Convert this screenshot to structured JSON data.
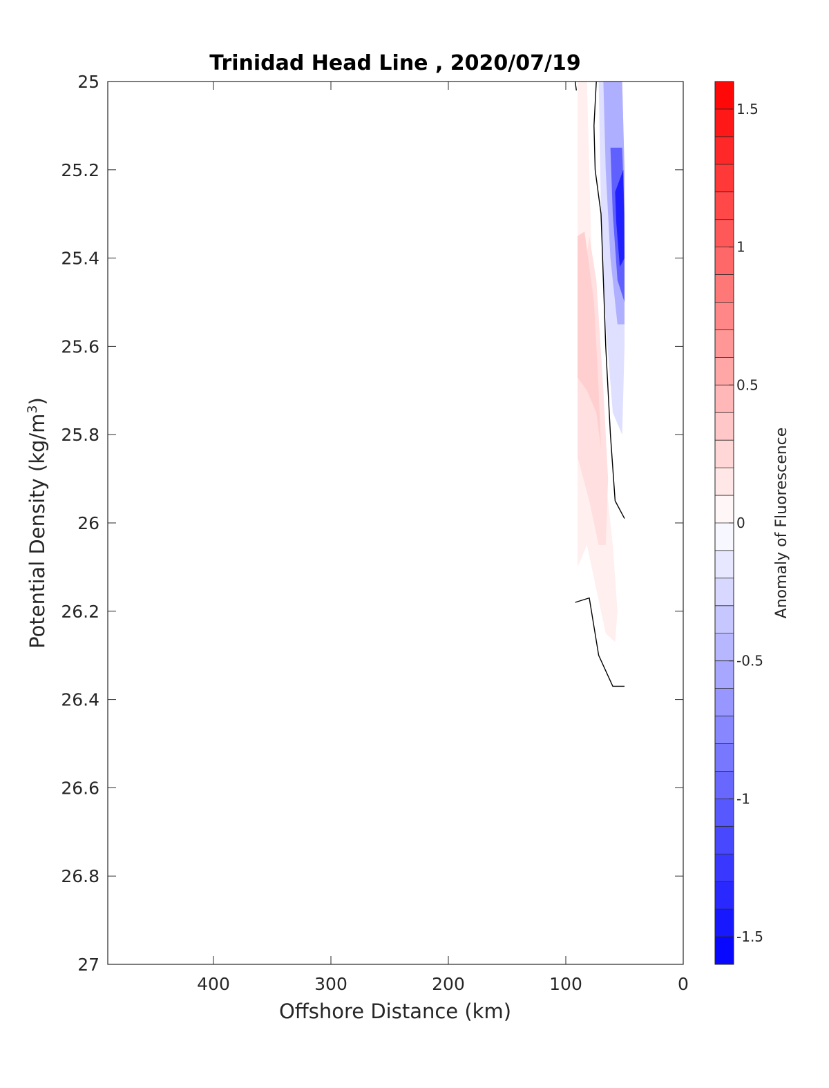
{
  "chart_data": {
    "type": "heatmap",
    "title": "Trinidad Head Line , 2020/07/19",
    "xlabel": "Offshore Distance (km)",
    "ylabel": "Potential Density (kg/m",
    "ylabel_superscript": "3",
    "ylabel_suffix": ")",
    "xlim": [
      490,
      0
    ],
    "x_reversed": true,
    "ylim": [
      25,
      27
    ],
    "y_reversed": true,
    "x_ticks": [
      400,
      300,
      200,
      100,
      0
    ],
    "y_ticks": [
      25,
      25.2,
      25.4,
      25.6,
      25.8,
      26,
      26.2,
      26.4,
      26.6,
      26.8,
      27
    ],
    "y_tick_labels": [
      "25",
      "25.2",
      "25.4",
      "25.6",
      "25.8",
      "26",
      "26.2",
      "26.4",
      "26.6",
      "26.8",
      "27"
    ],
    "grid": false,
    "colorbar": {
      "label": "Anomaly of Fluorescence",
      "range": [
        -1.6,
        1.6
      ],
      "step": 0.1,
      "ticks": [
        1.5,
        1,
        0.5,
        0,
        -0.5,
        -1,
        -1.5
      ],
      "tick_labels": [
        "1.5",
        "1",
        "0.5",
        "0",
        "-0.5",
        "-1",
        "-1.5"
      ],
      "low_color": "#0000ff",
      "high_color": "#ff0000",
      "mid_color": "#ffffff"
    },
    "contour_regions": [
      {
        "level": 0.1,
        "points": [
          [
            90,
            25
          ],
          [
            82,
            25
          ],
          [
            80,
            25.2
          ],
          [
            78,
            25.4
          ],
          [
            72,
            25.7
          ],
          [
            66,
            25.9
          ],
          [
            60,
            26.05
          ],
          [
            56,
            26.2
          ],
          [
            58,
            26.27
          ],
          [
            66,
            26.25
          ],
          [
            74,
            26.15
          ],
          [
            82,
            26.05
          ],
          [
            90,
            26.1
          ],
          [
            90,
            25
          ]
        ]
      },
      {
        "level": 0.2,
        "points": [
          [
            90,
            25.55
          ],
          [
            80,
            25.35
          ],
          [
            74,
            25.45
          ],
          [
            68,
            25.7
          ],
          [
            64,
            25.9
          ],
          [
            66,
            26.05
          ],
          [
            72,
            26.05
          ],
          [
            80,
            25.95
          ],
          [
            90,
            25.85
          ],
          [
            90,
            25.55
          ]
        ]
      },
      {
        "level": 0.3,
        "points": [
          [
            90,
            25.35
          ],
          [
            84,
            25.34
          ],
          [
            76,
            25.5
          ],
          [
            72,
            25.7
          ],
          [
            70,
            25.83
          ],
          [
            74,
            25.75
          ],
          [
            82,
            25.7
          ],
          [
            90,
            25.67
          ],
          [
            90,
            25.35
          ]
        ]
      },
      {
        "level": -0.2,
        "points": [
          [
            72,
            25
          ],
          [
            52,
            25
          ],
          [
            50,
            25.2
          ],
          [
            50,
            25.6
          ],
          [
            52,
            25.8
          ],
          [
            60,
            25.75
          ],
          [
            66,
            25.55
          ],
          [
            70,
            25.3
          ],
          [
            72,
            25
          ]
        ]
      },
      {
        "level": -0.5,
        "points": [
          [
            68,
            25
          ],
          [
            52,
            25
          ],
          [
            50,
            25.2
          ],
          [
            50,
            25.55
          ],
          [
            56,
            25.55
          ],
          [
            62,
            25.4
          ],
          [
            66,
            25.2
          ],
          [
            68,
            25
          ]
        ]
      },
      {
        "level": -1.0,
        "points": [
          [
            62,
            25.15
          ],
          [
            52,
            25.15
          ],
          [
            50,
            25.3
          ],
          [
            50,
            25.5
          ],
          [
            56,
            25.45
          ],
          [
            60,
            25.3
          ],
          [
            62,
            25.15
          ]
        ]
      },
      {
        "level": -1.4,
        "points": [
          [
            58,
            25.25
          ],
          [
            51,
            25.2
          ],
          [
            50,
            25.4
          ],
          [
            54,
            25.42
          ],
          [
            57,
            25.32
          ],
          [
            58,
            25.25
          ]
        ]
      }
    ],
    "contour_lines": [
      {
        "points": [
          [
            92,
            25
          ],
          [
            91,
            25.02
          ]
        ]
      },
      {
        "points": [
          [
            74,
            25
          ],
          [
            76,
            25.1
          ],
          [
            75,
            25.2
          ],
          [
            70,
            25.3
          ],
          [
            66,
            25.6
          ],
          [
            62,
            25.8
          ],
          [
            58,
            25.95
          ],
          [
            50,
            25.99
          ]
        ]
      },
      {
        "points": [
          [
            92,
            26.18
          ],
          [
            80,
            26.17
          ],
          [
            72,
            26.3
          ],
          [
            60,
            26.37
          ],
          [
            50,
            26.37
          ]
        ]
      }
    ]
  }
}
